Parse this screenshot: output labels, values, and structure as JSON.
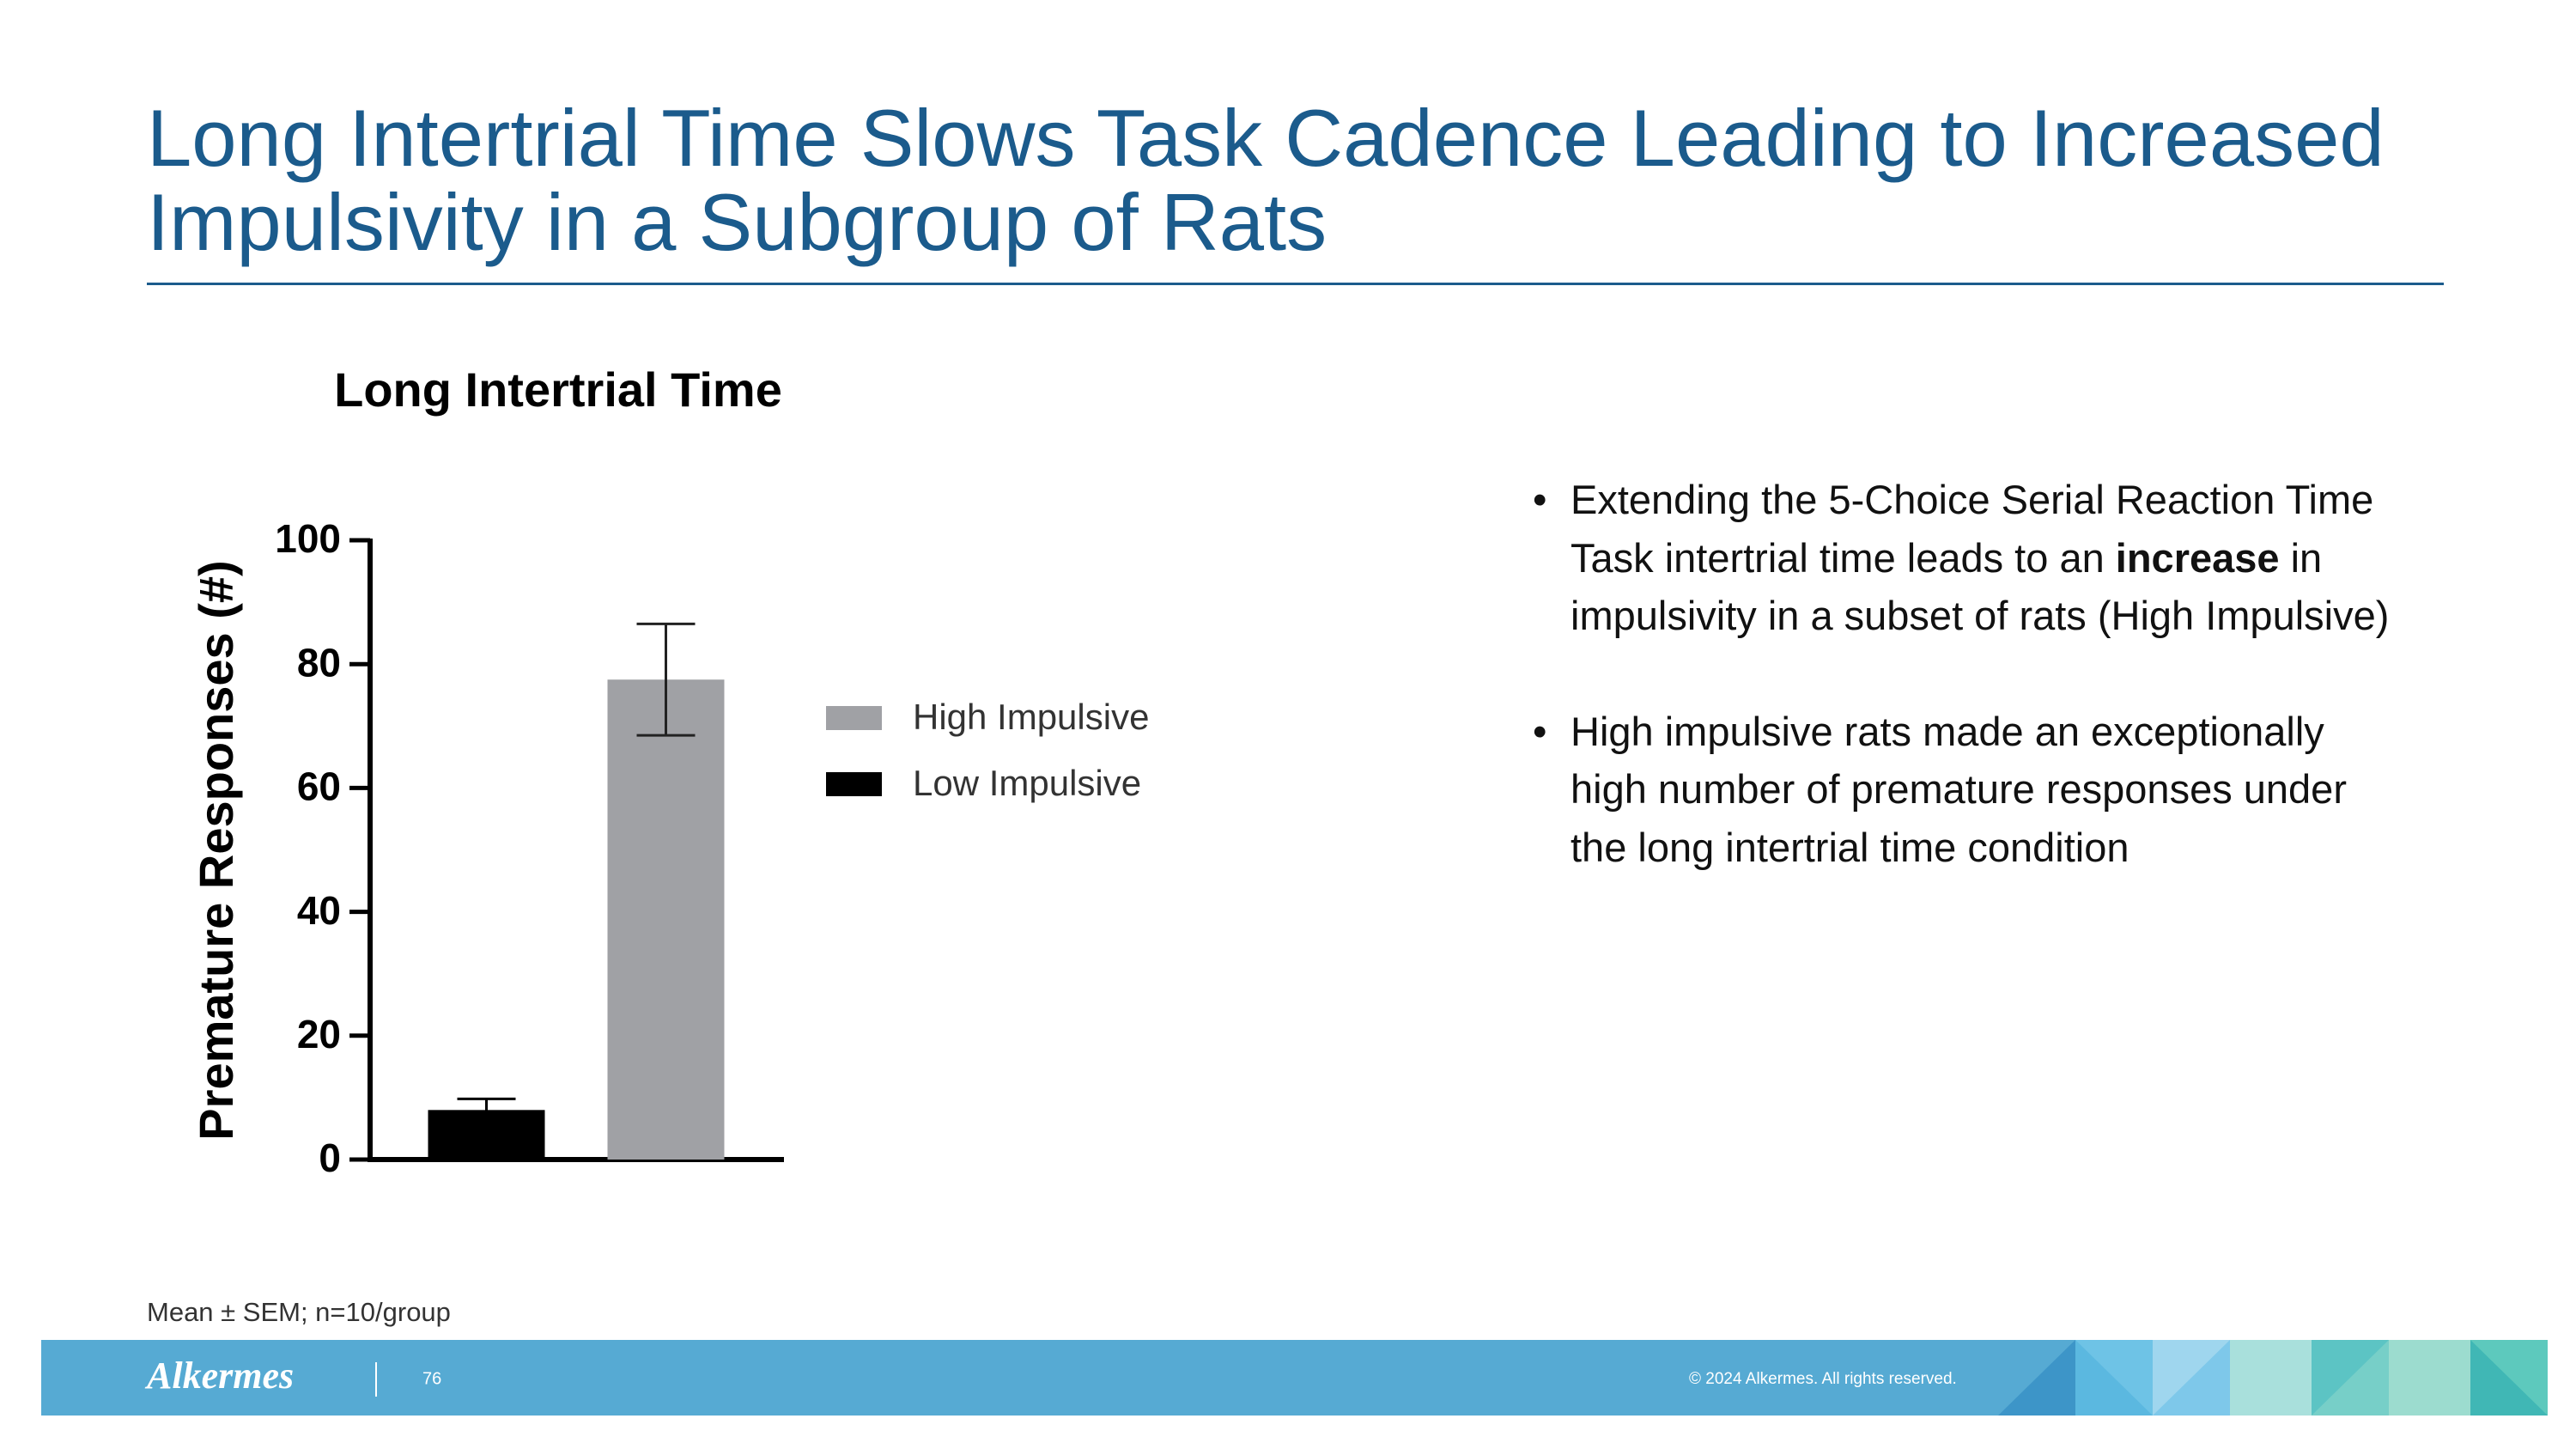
{
  "slide": {
    "title": "Long Intertrial Time Slows Task Cadence Leading to Increased Impulsivity in a Subgroup of Rats",
    "bullets": [
      [
        "Extending the 5-Choice Serial Reaction Time Task intertrial time leads to an ",
        "increase",
        " in impulsivity in a subset of rats (High Impulsive)"
      ],
      [
        "High impulsive rats made an exceptionally high number of premature responses under the long intertrial time condition"
      ]
    ],
    "footnote": "Mean ± SEM; n=10/group",
    "logo": "Alkermes",
    "page_number": "76",
    "copyright": "© 2024 Alkermes. All rights reserved."
  },
  "chart_data": {
    "type": "bar",
    "title": "Long Intertrial Time",
    "ylabel": "Premature Responses (#)",
    "categories": [
      null,
      null
    ],
    "series": [
      {
        "name": "High Impulsive",
        "color": "#a0a1a5",
        "values": [
          null,
          77.5
        ],
        "errors": [
          null,
          9
        ]
      },
      {
        "name": "Low Impulsive",
        "color": "#000000",
        "values": [
          8,
          null
        ],
        "errors": [
          1.8,
          null
        ]
      }
    ],
    "ylim": [
      0,
      100
    ],
    "yticks": [
      0,
      20,
      40,
      60,
      80,
      100
    ]
  }
}
